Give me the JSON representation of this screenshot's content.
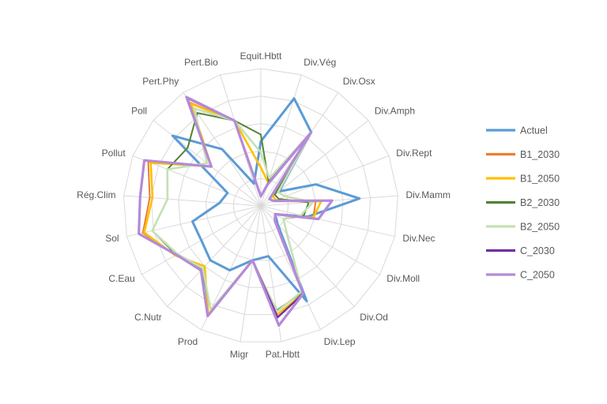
{
  "chart_data": {
    "type": "radar",
    "title": "",
    "rmax": 10,
    "grid": true,
    "grid_rings": 5,
    "legend_position": "right",
    "categories": [
      "Equit.Hbtt",
      "Div.Vég",
      "Div.Osx",
      "Div.Amph",
      "Div.Rept",
      "Div.Mamm",
      "Div.Nec",
      "Div.Moll",
      "Div.Od",
      "Div.Lep",
      "Pat.Hbtt",
      "Migr",
      "Prod",
      "C.Nutr",
      "C.Eau",
      "Sol",
      "Rég.Clim",
      "Pollut",
      "Poll",
      "Pert.Phy",
      "Pert.Bio"
    ],
    "series": [
      {
        "name": "Actuel",
        "color": "#5B9BD5",
        "width": 3.0,
        "values": [
          4.7,
          8.2,
          6.5,
          1.7,
          4.3,
          7.2,
          3.5,
          1.2,
          1.8,
          7.7,
          3.7,
          4.0,
          5.2,
          5.4,
          5.0,
          5.1,
          3.0,
          2.6,
          8.2,
          5.0,
          1.7
        ]
      },
      {
        "name": "B1_2030",
        "color": "#ED7D31",
        "width": 2.0,
        "values": [
          0.7,
          1.7,
          6.5,
          0.8,
          1.0,
          4.0,
          3.9,
          1.2,
          1.5,
          7.1,
          8.0,
          4.0,
          8.8,
          6.0,
          7.2,
          8.8,
          8.1,
          8.8,
          4.6,
          9.1,
          6.5
        ]
      },
      {
        "name": "B1_2050",
        "color": "#FFC000",
        "width": 2.6,
        "values": [
          2.8,
          1.8,
          6.5,
          1.1,
          1.2,
          4.4,
          3.9,
          1.2,
          1.5,
          7.1,
          8.0,
          4.0,
          8.8,
          6.0,
          7.2,
          8.7,
          7.9,
          8.6,
          4.6,
          9.0,
          6.5
        ]
      },
      {
        "name": "B2_2030",
        "color": "#548235",
        "width": 2.0,
        "values": [
          5.2,
          1.9,
          6.5,
          1.3,
          1.4,
          3.5,
          3.2,
          1.9,
          2.8,
          7.0,
          7.7,
          4.0,
          8.4,
          6.3,
          7.1,
          8.1,
          6.8,
          7.3,
          6.8,
          8.2,
          6.5
        ]
      },
      {
        "name": "B2_2050",
        "color": "#C5E0B4",
        "width": 2.6,
        "values": [
          3.9,
          2.1,
          6.5,
          1.6,
          1.9,
          3.8,
          3.0,
          1.9,
          2.8,
          6.9,
          7.8,
          4.0,
          8.4,
          6.2,
          7.0,
          8.1,
          6.8,
          7.3,
          5.0,
          8.6,
          6.5
        ]
      },
      {
        "name": "C_2030",
        "color": "#7030A0",
        "width": 2.4,
        "values": [
          0.7,
          1.7,
          6.5,
          0.8,
          1.0,
          5.2,
          4.3,
          1.2,
          1.5,
          7.1,
          8.2,
          4.0,
          8.9,
          6.4,
          7.1,
          9.1,
          8.8,
          9.1,
          4.6,
          9.5,
          6.5
        ]
      },
      {
        "name": "C_2050",
        "color": "#B48AD8",
        "width": 3.2,
        "values": [
          0.7,
          1.6,
          6.5,
          0.8,
          1.0,
          5.2,
          4.3,
          1.2,
          1.5,
          7.1,
          8.8,
          4.0,
          8.9,
          6.4,
          7.1,
          9.1,
          8.8,
          9.1,
          4.6,
          9.6,
          6.5
        ]
      }
    ]
  }
}
